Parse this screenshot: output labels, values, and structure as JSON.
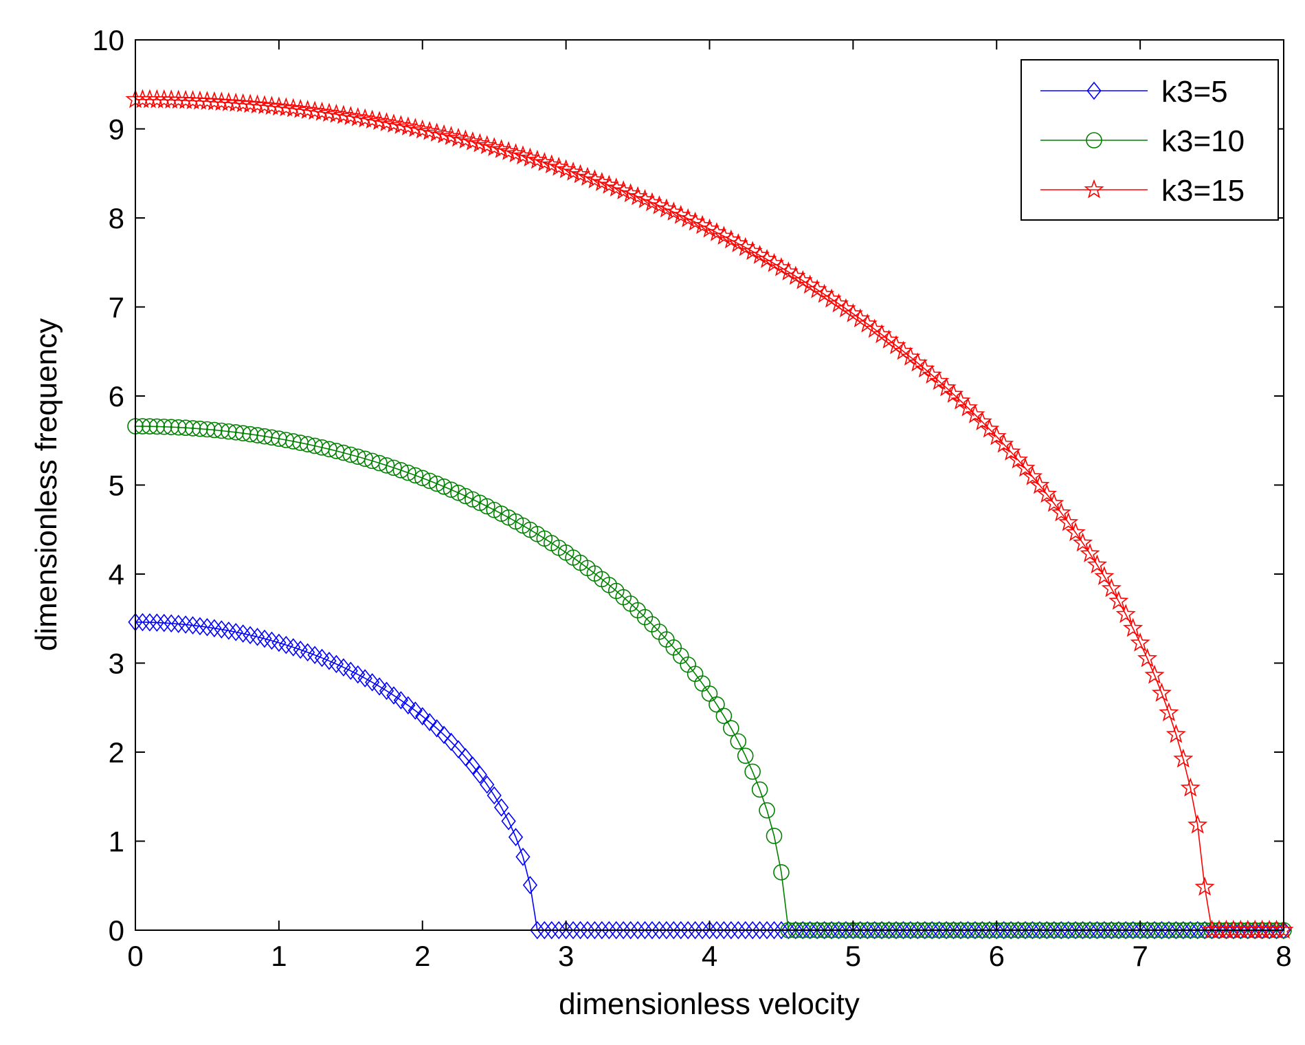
{
  "chart_data": {
    "type": "line",
    "title": "",
    "xlabel": "dimensionless velocity",
    "ylabel": "dimensionless frequency",
    "xlim": [
      0,
      8
    ],
    "ylim": [
      0,
      10
    ],
    "xticks": [
      "0",
      "1",
      "2",
      "3",
      "4",
      "5",
      "6",
      "7",
      "8"
    ],
    "yticks": [
      "0",
      "1",
      "2",
      "3",
      "4",
      "5",
      "6",
      "7",
      "8",
      "9",
      "10"
    ],
    "grid": false,
    "legend_position": "top-right",
    "x_step": 0.05,
    "series": [
      {
        "name": "k3=5",
        "color": "#0000ff",
        "marker": "diamond",
        "f0": 3.46,
        "critical_velocity": 2.78
      },
      {
        "name": "k3=10",
        "color": "#008000",
        "marker": "circle",
        "f0": 5.66,
        "critical_velocity": 4.53
      },
      {
        "name": "k3=15",
        "color": "#ff0000",
        "marker": "star",
        "f0": 9.33,
        "critical_velocity": 7.46
      }
    ]
  }
}
